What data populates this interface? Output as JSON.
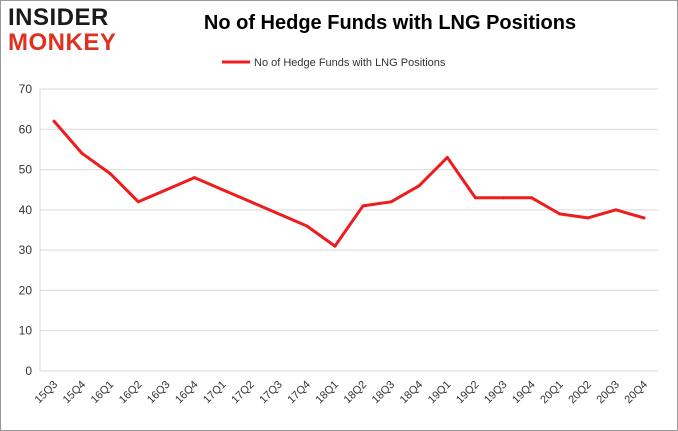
{
  "logo": {
    "line1": "INSIDER",
    "line2": "MONKEY"
  },
  "colors": {
    "line": "#ee1c1c",
    "grid": "#d9d9d9",
    "logo_red": "#e0301e"
  },
  "chart_data": {
    "type": "line",
    "title": "No of Hedge Funds with LNG Positions",
    "xlabel": "",
    "ylabel": "",
    "ylim": [
      0,
      70
    ],
    "yticks": [
      0,
      10,
      20,
      30,
      40,
      50,
      60,
      70
    ],
    "grid": true,
    "legend": "top-center",
    "categories": [
      "15Q3",
      "15Q4",
      "16Q1",
      "16Q2",
      "16Q3",
      "16Q4",
      "17Q1",
      "17Q2",
      "17Q3",
      "17Q4",
      "18Q1",
      "18Q2",
      "18Q3",
      "18Q4",
      "19Q1",
      "19Q2",
      "19Q3",
      "19Q4",
      "20Q1",
      "20Q2",
      "20Q3",
      "20Q4"
    ],
    "series": [
      {
        "name": "No of Hedge Funds with LNG Positions",
        "values": [
          62,
          54,
          49,
          42,
          45,
          48,
          45,
          42,
          39,
          36,
          31,
          41,
          42,
          46,
          53,
          43,
          43,
          43,
          39,
          38,
          40,
          38
        ]
      }
    ]
  }
}
